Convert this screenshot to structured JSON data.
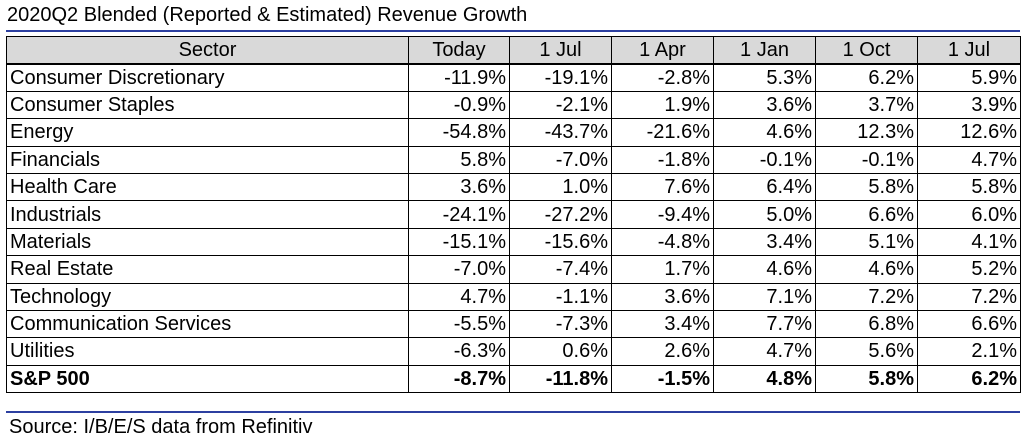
{
  "title": "2020Q2 Blended (Reported & Estimated) Revenue Growth",
  "columns": [
    "Sector",
    "Today",
    "1 Jul",
    "1 Apr",
    "1 Jan",
    "1 Oct",
    "1 Jul"
  ],
  "rows": [
    {
      "sector": "Consumer Discretionary",
      "values": [
        "-11.9%",
        "-19.1%",
        "-2.8%",
        "5.3%",
        "6.2%",
        "5.9%"
      ]
    },
    {
      "sector": "Consumer Staples",
      "values": [
        "-0.9%",
        "-2.1%",
        "1.9%",
        "3.6%",
        "3.7%",
        "3.9%"
      ]
    },
    {
      "sector": "Energy",
      "values": [
        "-54.8%",
        "-43.7%",
        "-21.6%",
        "4.6%",
        "12.3%",
        "12.6%"
      ]
    },
    {
      "sector": "Financials",
      "values": [
        "5.8%",
        "-7.0%",
        "-1.8%",
        "-0.1%",
        "-0.1%",
        "4.7%"
      ]
    },
    {
      "sector": "Health Care",
      "values": [
        "3.6%",
        "1.0%",
        "7.6%",
        "6.4%",
        "5.8%",
        "5.8%"
      ]
    },
    {
      "sector": "Industrials",
      "values": [
        "-24.1%",
        "-27.2%",
        "-9.4%",
        "5.0%",
        "6.6%",
        "6.0%"
      ]
    },
    {
      "sector": "Materials",
      "values": [
        "-15.1%",
        "-15.6%",
        "-4.8%",
        "3.4%",
        "5.1%",
        "4.1%"
      ]
    },
    {
      "sector": "Real Estate",
      "values": [
        "-7.0%",
        "-7.4%",
        "1.7%",
        "4.6%",
        "4.6%",
        "5.2%"
      ]
    },
    {
      "sector": "Technology",
      "values": [
        "4.7%",
        "-1.1%",
        "3.6%",
        "7.1%",
        "7.2%",
        "7.2%"
      ]
    },
    {
      "sector": "Communication Services",
      "values": [
        "-5.5%",
        "-7.3%",
        "3.4%",
        "7.7%",
        "6.8%",
        "6.6%"
      ]
    },
    {
      "sector": "Utilities",
      "values": [
        "-6.3%",
        "0.6%",
        "2.6%",
        "4.7%",
        "5.6%",
        "2.1%"
      ]
    }
  ],
  "total": {
    "sector": "S&P 500",
    "values": [
      "-8.7%",
      "-11.8%",
      "-1.5%",
      "4.8%",
      "5.8%",
      "6.2%"
    ]
  },
  "source": "Source: I/B/E/S data from Refinitiv",
  "colors": {
    "rule": "#2c3fa0",
    "header_bg": "#d9d9d9"
  }
}
